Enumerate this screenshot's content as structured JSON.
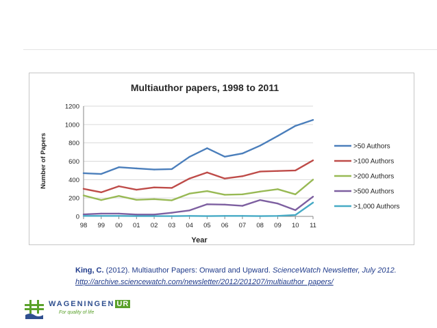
{
  "chart_data": {
    "type": "line",
    "title": "Multiauthor papers, 1998 to 2011",
    "xlabel": "Year",
    "ylabel": "Number of Papers",
    "categories": [
      "98",
      "99",
      "00",
      "01",
      "02",
      "03",
      "04",
      "05",
      "06",
      "07",
      "08",
      "09",
      "10",
      "11"
    ],
    "ylim": [
      0,
      1200
    ],
    "yticks": [
      0,
      200,
      400,
      600,
      800,
      1000,
      1200
    ],
    "grid": true,
    "legend": "right",
    "series": [
      {
        "name": ">50 Authors",
        "color": "#4a7ebb",
        "values": [
          470,
          462,
          535,
          522,
          510,
          515,
          648,
          742,
          650,
          685,
          770,
          875,
          985,
          1050
        ]
      },
      {
        "name": ">100 Authors",
        "color": "#be4b48",
        "values": [
          300,
          262,
          328,
          290,
          315,
          310,
          412,
          478,
          412,
          437,
          488,
          494,
          500,
          610
        ]
      },
      {
        "name": ">200 Authors",
        "color": "#98b954",
        "values": [
          228,
          178,
          222,
          180,
          188,
          175,
          248,
          275,
          235,
          240,
          270,
          296,
          240,
          400
        ]
      },
      {
        "name": ">500 Authors",
        "color": "#7d5fa0",
        "values": [
          22,
          30,
          30,
          20,
          20,
          40,
          65,
          132,
          128,
          115,
          178,
          140,
          68,
          215
        ]
      },
      {
        "name": ">1,000 Authors",
        "color": "#46aac5",
        "values": [
          5,
          5,
          5,
          3,
          3,
          3,
          5,
          3,
          5,
          5,
          3,
          5,
          15,
          150
        ]
      }
    ]
  },
  "citation": {
    "author": "King, C.",
    "text": " (2012). Multiauthor Papers: Onward and Upward. ",
    "journal": "ScienceWatch Newsletter, July 2012.",
    "url": "http://archive.sciencewatch.com/newsletter/2012/201207/multiauthor_papers/"
  },
  "logo": {
    "name": "WAGENINGEN",
    "suffix": "UR",
    "tagline": "For quality of life"
  }
}
